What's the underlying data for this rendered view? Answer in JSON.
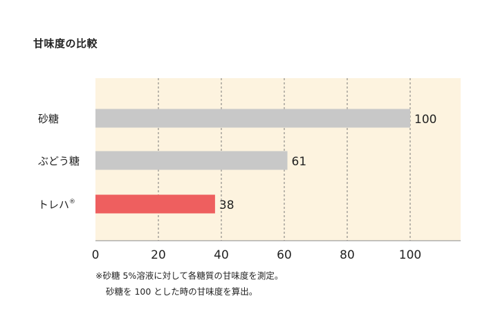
{
  "chart_data": {
    "type": "bar",
    "orientation": "horizontal",
    "title": "甘味度の比較",
    "categories": [
      "砂糖",
      "ぶどう糖",
      "トレハ"
    ],
    "category_superscripts": [
      "",
      "",
      "®"
    ],
    "values": [
      100,
      61,
      38
    ],
    "value_labels": [
      "100",
      "61",
      "38"
    ],
    "bar_colors": [
      "#c8c8c8",
      "#c8c8c8",
      "#ee5f5f"
    ],
    "plot_background": "#fdf3df",
    "xlim": [
      0,
      116
    ],
    "xticks": [
      0,
      20,
      40,
      60,
      80,
      100
    ],
    "xtick_labels": [
      "0",
      "20",
      "40",
      "60",
      "80",
      "100"
    ],
    "grid": "vertical dashed",
    "xlabel": "",
    "ylabel": "",
    "notes": [
      "※砂糖 5%溶液に対して各糖質の甘味度を測定。",
      "砂糖を 100 とした時の甘味度を算出。"
    ]
  }
}
